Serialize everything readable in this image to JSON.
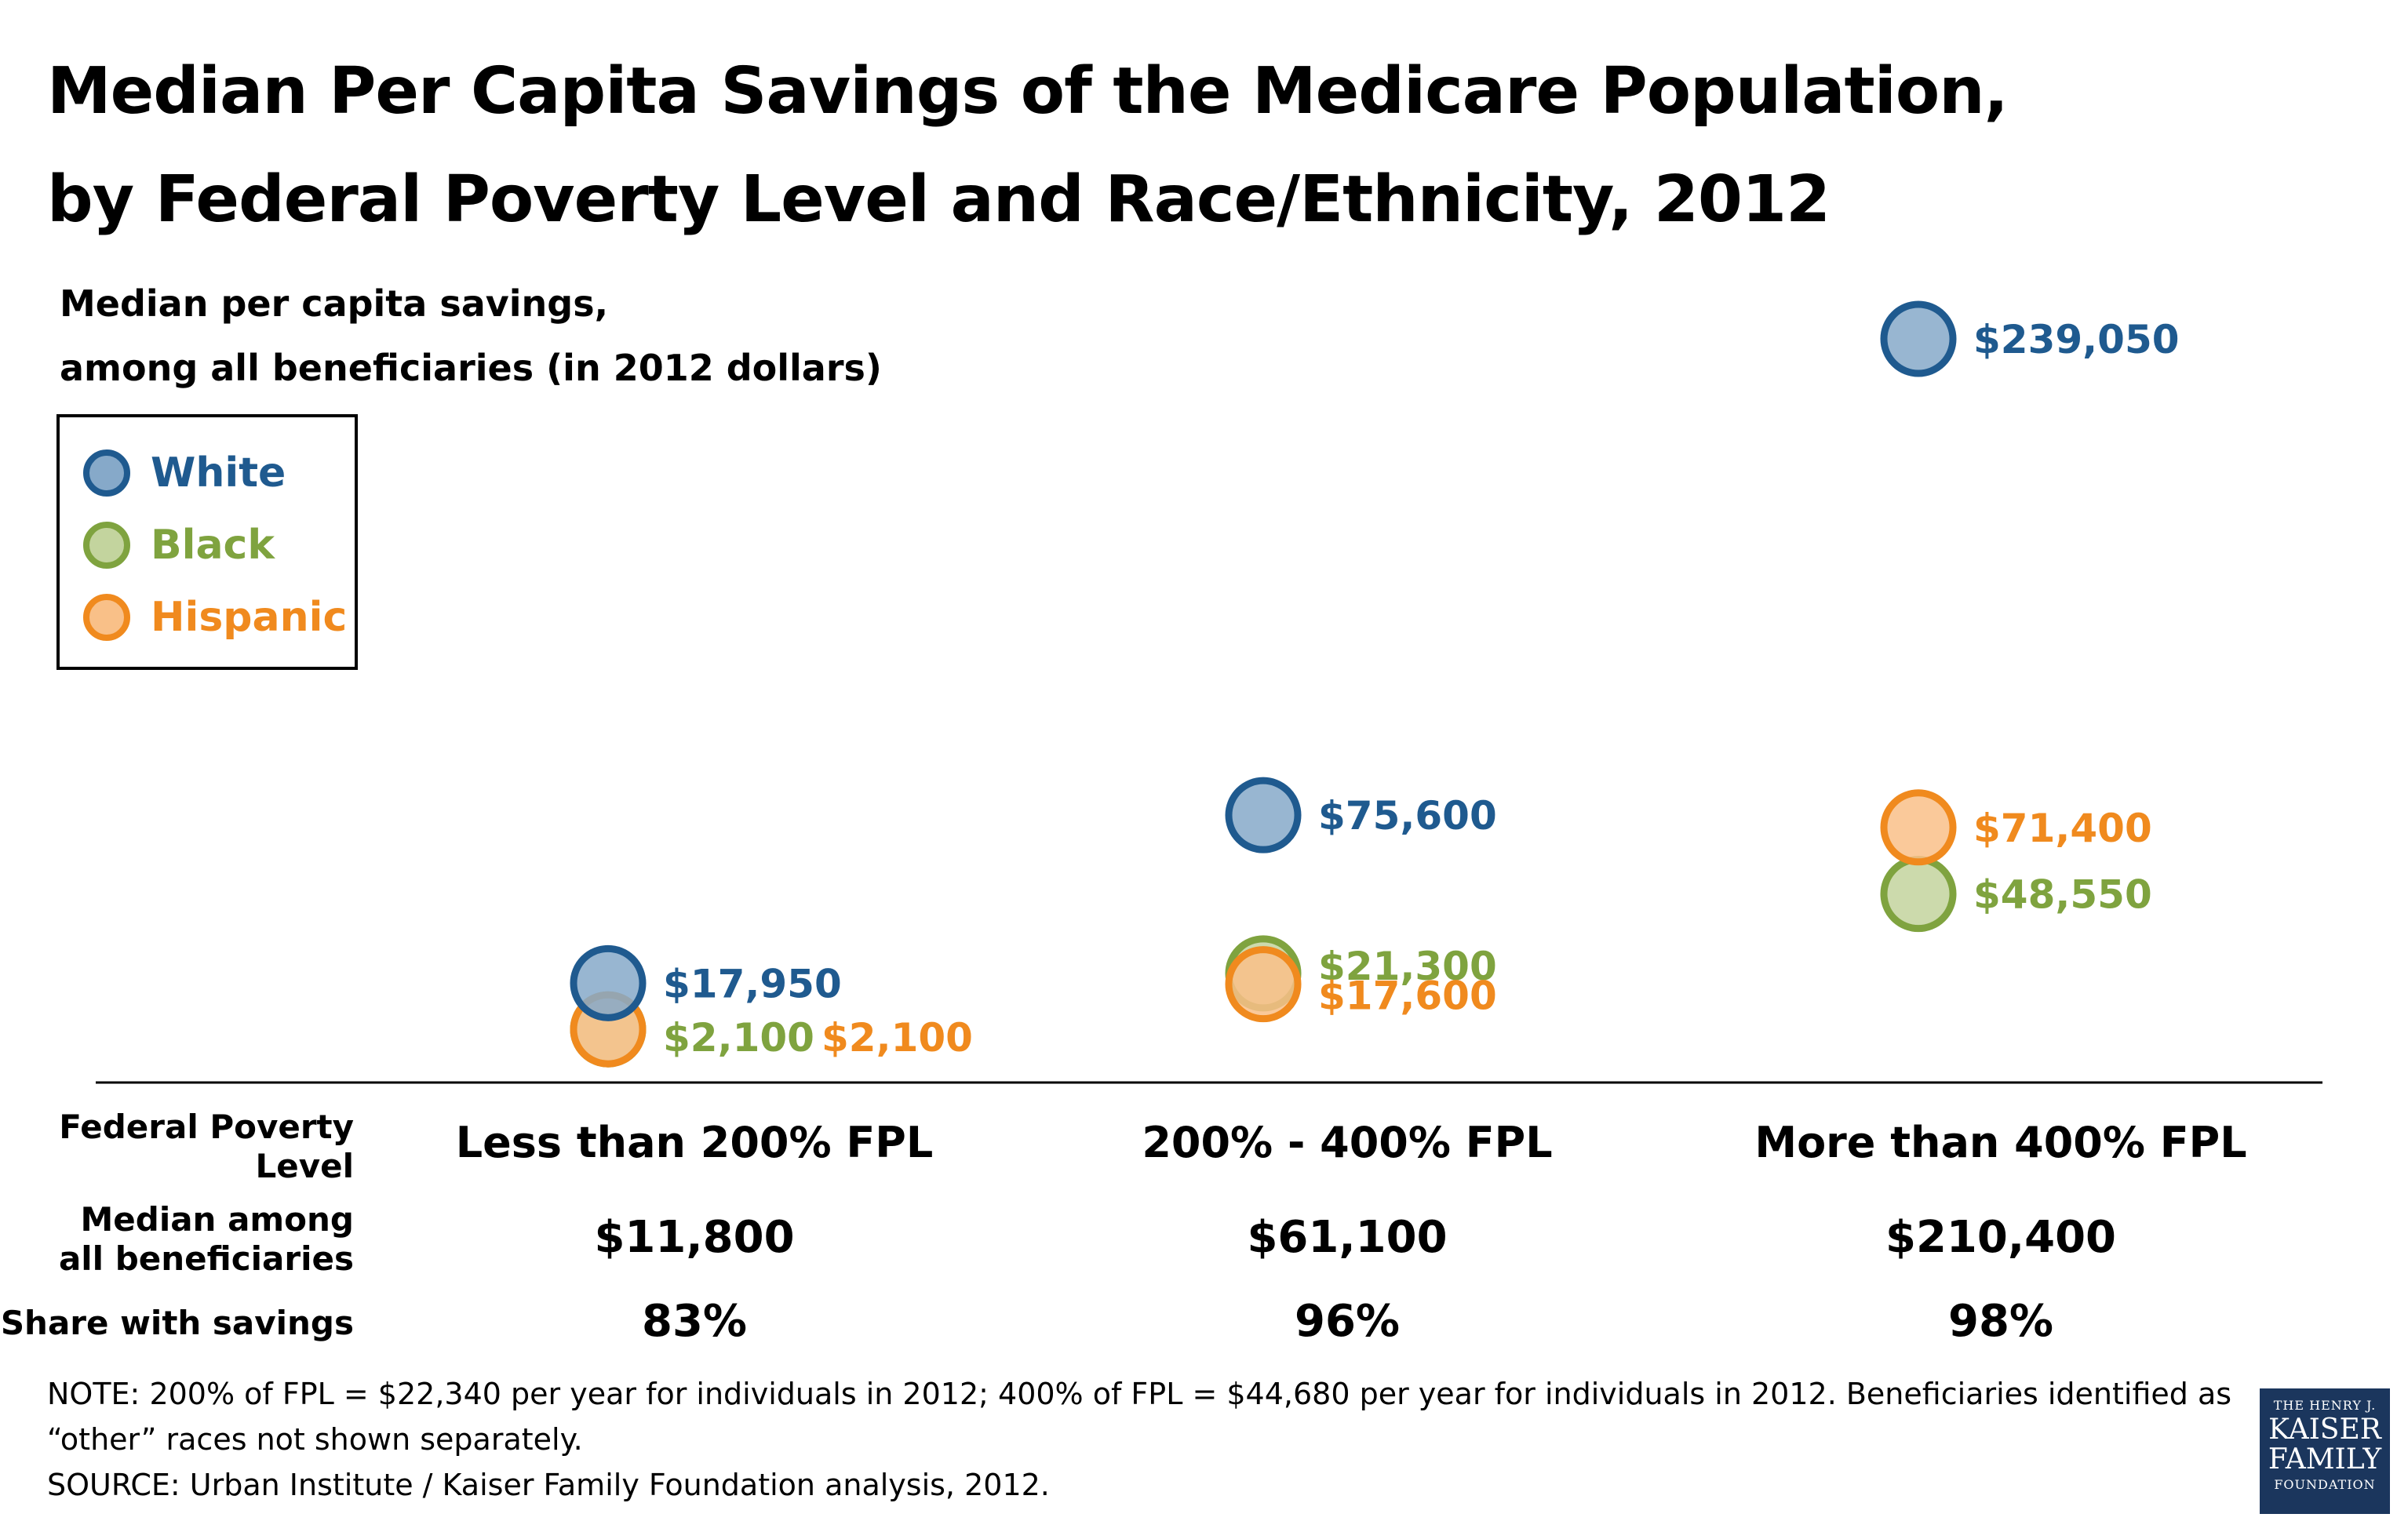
{
  "chart_data": {
    "type": "scatter",
    "title_line1": "Median Per Capita Savings of the Medicare Population,",
    "title_line2": "by Federal Poverty Level and Race/Ethnicity, 2012",
    "subtitle_line1": "Median per capita savings,",
    "subtitle_line2": "among all beneficiaries (in 2012 dollars)",
    "categories": [
      "Less than 200% FPL",
      "200% - 400% FPL",
      "More than 400% FPL"
    ],
    "series": [
      {
        "name": "White",
        "color": "#1f5a8f",
        "fill": "#86a9c9",
        "values": [
          17950,
          75600,
          239050
        ],
        "labels": [
          "$17,950",
          "$75,600",
          "$239,050"
        ]
      },
      {
        "name": "Black",
        "color": "#7fa33f",
        "fill": "#c3d49e",
        "values": [
          2100,
          21300,
          48550
        ],
        "labels": [
          "$2,100",
          "$21,300",
          "$48,550"
        ]
      },
      {
        "name": "Hispanic",
        "color": "#f08a1e",
        "fill": "#f9c088",
        "values": [
          2100,
          17600,
          71400
        ],
        "labels": [
          "$2,100",
          "$17,600",
          "$71,400"
        ]
      }
    ],
    "ylim": [
      0,
      260000
    ],
    "legend_position": "top-left"
  },
  "table": {
    "row_labels": {
      "fpl": [
        "Federal Poverty",
        "Level"
      ],
      "median": [
        "Median among",
        "all beneficiaries"
      ],
      "share": "Share with savings"
    },
    "median_values": [
      "$11,800",
      "$61,100",
      "$210,400"
    ],
    "share_values": [
      "83%",
      "96%",
      "98%"
    ]
  },
  "note_line1": "NOTE: 200% of FPL = $22,340 per year for individuals in 2012; 400% of FPL = $44,680 per year for individuals in 2012. Beneficiaries identified as",
  "note_line2": "“other” races not shown separately.",
  "source": "SOURCE: Urban Institute / Kaiser Family Foundation analysis, 2012.",
  "logo": {
    "line1": "THE HENRY J.",
    "line2": "KAISER",
    "line3": "FAMILY",
    "line4": "FOUNDATION"
  }
}
